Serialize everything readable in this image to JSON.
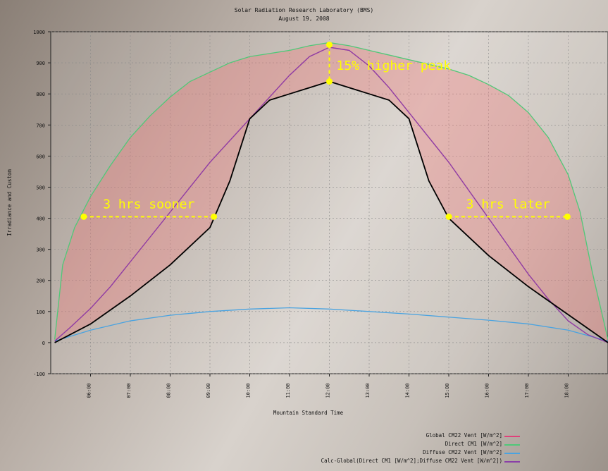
{
  "chart_data": {
    "type": "line",
    "title": "Solar Radiation Research Laboratory (BMS)",
    "subtitle": "August 19, 2008",
    "xlabel": "Mountain Standard Time",
    "ylabel": "Irradiance and Custom",
    "xlim": [
      5.0,
      19.0
    ],
    "ylim": [
      -100,
      1000
    ],
    "xticks": [
      "06:00",
      "07:00",
      "08:00",
      "09:00",
      "10:00",
      "11:00",
      "12:00",
      "13:00",
      "14:00",
      "15:00",
      "16:00",
      "17:00",
      "18:00"
    ],
    "yticks": [
      -100,
      0,
      100,
      200,
      300,
      400,
      500,
      600,
      700,
      800,
      900,
      1000
    ],
    "grid": true,
    "legend_position": "bottom-right",
    "series": [
      {
        "name": "Global CM22 Vent [W/m^2]",
        "color": "#e0407a",
        "x": [
          5.1,
          5.5,
          6,
          6.5,
          7,
          7.5,
          8,
          8.5,
          9,
          9.5,
          10,
          10.5,
          11,
          11.5,
          12,
          12.5,
          13,
          13.5,
          14,
          14.5,
          15,
          15.5,
          16,
          16.5,
          17,
          17.5,
          18,
          18.5,
          19
        ],
        "y": [
          5,
          50,
          110,
          180,
          260,
          340,
          420,
          500,
          580,
          650,
          720,
          790,
          860,
          920,
          950,
          940,
          890,
          820,
          740,
          660,
          580,
          490,
          400,
          310,
          220,
          140,
          70,
          25,
          0
        ]
      },
      {
        "name": "Direct CM1 [W/m^2]",
        "color": "#50c878",
        "x": [
          5.1,
          5.3,
          5.6,
          6,
          6.5,
          7,
          7.5,
          8,
          8.5,
          9,
          9.5,
          10,
          10.5,
          11,
          11.5,
          12,
          12.5,
          13,
          13.5,
          14,
          14.5,
          15,
          15.5,
          16,
          16.5,
          17,
          17.5,
          18,
          18.3,
          18.6,
          19
        ],
        "y": [
          10,
          250,
          370,
          470,
          570,
          660,
          730,
          790,
          840,
          870,
          900,
          920,
          930,
          940,
          955,
          965,
          955,
          940,
          925,
          910,
          895,
          880,
          860,
          830,
          795,
          740,
          660,
          540,
          420,
          230,
          10
        ]
      },
      {
        "name": "Diffuse CM22 Vent [W/m^2]",
        "color": "#4aa3e0",
        "x": [
          5.1,
          6,
          7,
          8,
          9,
          10,
          11,
          12,
          13,
          14,
          15,
          16,
          17,
          18,
          19
        ],
        "y": [
          5,
          40,
          70,
          88,
          100,
          108,
          112,
          108,
          100,
          92,
          82,
          72,
          60,
          40,
          5
        ]
      },
      {
        "name": "Calc-Global(Direct CM1 [W/m^2];Diffuse CM22 Vent [W/m^2])",
        "color": "#8a3fa8",
        "x": [
          5.1,
          5.5,
          6,
          6.5,
          7,
          7.5,
          8,
          8.5,
          9,
          9.5,
          10,
          10.5,
          11,
          11.5,
          12,
          12.5,
          13,
          13.5,
          14,
          14.5,
          15,
          15.5,
          16,
          16.5,
          17,
          17.5,
          18,
          18.5,
          19
        ],
        "y": [
          5,
          50,
          110,
          180,
          260,
          340,
          420,
          500,
          580,
          650,
          720,
          790,
          860,
          920,
          950,
          940,
          890,
          820,
          740,
          660,
          580,
          490,
          400,
          310,
          220,
          140,
          70,
          25,
          0
        ]
      },
      {
        "color": "#000000",
        "x": [
          5.1,
          6,
          7,
          8,
          9,
          9.5,
          10,
          10.5,
          11,
          11.5,
          12,
          12.5,
          13,
          13.5,
          14,
          14.5,
          15,
          16,
          17,
          18,
          19
        ],
        "y": [
          0,
          60,
          150,
          250,
          370,
          520,
          720,
          780,
          800,
          820,
          840,
          820,
          800,
          780,
          720,
          520,
          400,
          280,
          180,
          90,
          0
        ]
      }
    ],
    "annotations": [
      {
        "text": "15% higher peak",
        "color": "#ffff00"
      },
      {
        "text": "3 hrs sooner",
        "color": "#ffff00"
      },
      {
        "text": "3 hrs later",
        "color": "#ffff00"
      }
    ]
  }
}
